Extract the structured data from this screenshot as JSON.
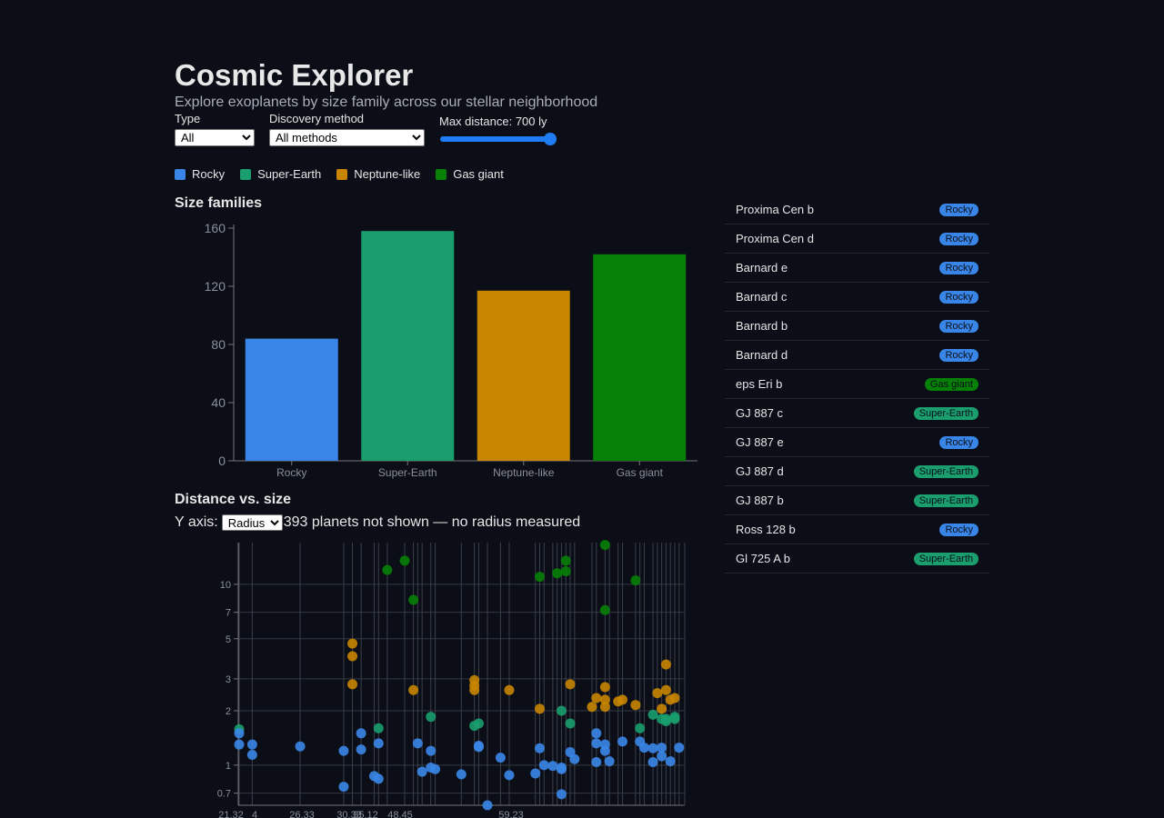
{
  "header": {
    "title": "Cosmic Explorer",
    "subtitle": "Explore exoplanets by size family across our stellar neighborhood"
  },
  "controls": {
    "type_label": "Type",
    "type_value": "All",
    "method_label": "Discovery method",
    "method_value": "All methods",
    "distance_label": "Max distance: 700 ly",
    "distance_fraction": 1.0
  },
  "legend": [
    {
      "label": "Rocky",
      "color": "#3a86e8"
    },
    {
      "label": "Super-Earth",
      "color": "#1a9e6e"
    },
    {
      "label": "Neptune-like",
      "color": "#c88500"
    },
    {
      "label": "Gas giant",
      "color": "#078007"
    }
  ],
  "bar_section": {
    "title": "Size families"
  },
  "scatter_section": {
    "title": "Distance vs. size",
    "yaxis_label": "Y axis:",
    "yaxis_value": "Radius",
    "note": "393 planets not shown — no radius measured"
  },
  "chart_data": [
    {
      "type": "bar",
      "title": "Size families",
      "categories": [
        "Rocky",
        "Super-Earth",
        "Neptune-like",
        "Gas giant"
      ],
      "values": [
        84,
        158,
        117,
        142
      ],
      "colors": [
        "#3a86e8",
        "#1a9e6e",
        "#c88500",
        "#078007"
      ],
      "ylim": [
        0,
        160
      ],
      "yticks": [
        0,
        40,
        80,
        120,
        160
      ],
      "grid": false
    },
    {
      "type": "scatter",
      "title": "Distance vs. size",
      "yscale": "log",
      "yticks": [
        0.7,
        1,
        2,
        3,
        5,
        7,
        10
      ],
      "ylim": [
        0.6,
        17
      ],
      "xlim": [
        0,
        100
      ],
      "grid": true,
      "points": [
        {
          "x": 0,
          "y": 1.58,
          "f": "Super-Earth"
        },
        {
          "x": 0,
          "y": 1.5,
          "f": "Rocky"
        },
        {
          "x": 0,
          "y": 1.3,
          "f": "Rocky"
        },
        {
          "x": 3,
          "y": 1.3,
          "f": "Rocky"
        },
        {
          "x": 3,
          "y": 1.14,
          "f": "Rocky"
        },
        {
          "x": 14,
          "y": 1.27,
          "f": "Rocky"
        },
        {
          "x": 24,
          "y": 1.2,
          "f": "Rocky"
        },
        {
          "x": 24,
          "y": 0.76,
          "f": "Rocky"
        },
        {
          "x": 26,
          "y": 4.7,
          "f": "Neptune-like"
        },
        {
          "x": 26,
          "y": 4.0,
          "f": "Neptune-like"
        },
        {
          "x": 26,
          "y": 2.8,
          "f": "Neptune-like"
        },
        {
          "x": 28,
          "y": 1.5,
          "f": "Rocky"
        },
        {
          "x": 28,
          "y": 1.22,
          "f": "Rocky"
        },
        {
          "x": 31,
          "y": 0.87,
          "f": "Rocky"
        },
        {
          "x": 32,
          "y": 1.6,
          "f": "Super-Earth"
        },
        {
          "x": 32,
          "y": 1.32,
          "f": "Rocky"
        },
        {
          "x": 32,
          "y": 0.84,
          "f": "Rocky"
        },
        {
          "x": 34,
          "y": 12.0,
          "f": "Gas giant"
        },
        {
          "x": 38,
          "y": 13.5,
          "f": "Gas giant"
        },
        {
          "x": 40,
          "y": 8.2,
          "f": "Gas giant"
        },
        {
          "x": 40,
          "y": 2.6,
          "f": "Neptune-like"
        },
        {
          "x": 41,
          "y": 1.32,
          "f": "Rocky"
        },
        {
          "x": 42,
          "y": 0.92,
          "f": "Rocky"
        },
        {
          "x": 44,
          "y": 1.85,
          "f": "Super-Earth"
        },
        {
          "x": 44,
          "y": 1.2,
          "f": "Rocky"
        },
        {
          "x": 44,
          "y": 0.97,
          "f": "Rocky"
        },
        {
          "x": 45,
          "y": 0.95,
          "f": "Rocky"
        },
        {
          "x": 51,
          "y": 0.89,
          "f": "Rocky"
        },
        {
          "x": 54,
          "y": 2.95,
          "f": "Neptune-like"
        },
        {
          "x": 54,
          "y": 2.75,
          "f": "Neptune-like"
        },
        {
          "x": 54,
          "y": 2.6,
          "f": "Neptune-like"
        },
        {
          "x": 54,
          "y": 1.65,
          "f": "Super-Earth"
        },
        {
          "x": 55,
          "y": 1.7,
          "f": "Super-Earth"
        },
        {
          "x": 55,
          "y": 1.28,
          "f": "Rocky"
        },
        {
          "x": 55,
          "y": 1.26,
          "f": "Rocky"
        },
        {
          "x": 57,
          "y": 0.6,
          "f": "Rocky"
        },
        {
          "x": 60,
          "y": 1.1,
          "f": "Rocky"
        },
        {
          "x": 62,
          "y": 2.6,
          "f": "Neptune-like"
        },
        {
          "x": 62,
          "y": 0.88,
          "f": "Rocky"
        },
        {
          "x": 69,
          "y": 11.0,
          "f": "Gas giant"
        },
        {
          "x": 69,
          "y": 2.05,
          "f": "Neptune-like"
        },
        {
          "x": 69,
          "y": 1.24,
          "f": "Rocky"
        },
        {
          "x": 68,
          "y": 0.9,
          "f": "Rocky"
        },
        {
          "x": 70,
          "y": 1.0,
          "f": "Rocky"
        },
        {
          "x": 72,
          "y": 0.99,
          "f": "Rocky"
        },
        {
          "x": 73,
          "y": 11.5,
          "f": "Gas giant"
        },
        {
          "x": 75,
          "y": 13.5,
          "f": "Gas giant"
        },
        {
          "x": 75,
          "y": 11.8,
          "f": "Gas giant"
        },
        {
          "x": 74,
          "y": 2.0,
          "f": "Super-Earth"
        },
        {
          "x": 74,
          "y": 0.97,
          "f": "Rocky"
        },
        {
          "x": 74,
          "y": 0.95,
          "f": "Rocky"
        },
        {
          "x": 74,
          "y": 0.69,
          "f": "Rocky"
        },
        {
          "x": 76,
          "y": 2.8,
          "f": "Neptune-like"
        },
        {
          "x": 76,
          "y": 1.7,
          "f": "Super-Earth"
        },
        {
          "x": 76,
          "y": 1.18,
          "f": "Rocky"
        },
        {
          "x": 77,
          "y": 1.08,
          "f": "Rocky"
        },
        {
          "x": 81,
          "y": 2.1,
          "f": "Neptune-like"
        },
        {
          "x": 82,
          "y": 2.35,
          "f": "Neptune-like"
        },
        {
          "x": 82,
          "y": 1.5,
          "f": "Rocky"
        },
        {
          "x": 82,
          "y": 1.32,
          "f": "Rocky"
        },
        {
          "x": 82,
          "y": 1.04,
          "f": "Rocky"
        },
        {
          "x": 84,
          "y": 16.5,
          "f": "Gas giant"
        },
        {
          "x": 84,
          "y": 7.2,
          "f": "Gas giant"
        },
        {
          "x": 84,
          "y": 2.7,
          "f": "Neptune-like"
        },
        {
          "x": 84,
          "y": 2.3,
          "f": "Neptune-like"
        },
        {
          "x": 84,
          "y": 2.1,
          "f": "Neptune-like"
        },
        {
          "x": 84,
          "y": 1.3,
          "f": "Rocky"
        },
        {
          "x": 84,
          "y": 1.2,
          "f": "Rocky"
        },
        {
          "x": 85,
          "y": 1.05,
          "f": "Rocky"
        },
        {
          "x": 87,
          "y": 2.25,
          "f": "Neptune-like"
        },
        {
          "x": 88,
          "y": 2.3,
          "f": "Neptune-like"
        },
        {
          "x": 88,
          "y": 1.35,
          "f": "Rocky"
        },
        {
          "x": 91,
          "y": 10.5,
          "f": "Gas giant"
        },
        {
          "x": 91,
          "y": 2.15,
          "f": "Neptune-like"
        },
        {
          "x": 92,
          "y": 1.6,
          "f": "Super-Earth"
        },
        {
          "x": 92,
          "y": 1.35,
          "f": "Rocky"
        },
        {
          "x": 93,
          "y": 1.25,
          "f": "Rocky"
        },
        {
          "x": 95,
          "y": 1.9,
          "f": "Super-Earth"
        },
        {
          "x": 95,
          "y": 1.24,
          "f": "Rocky"
        },
        {
          "x": 95,
          "y": 1.04,
          "f": "Rocky"
        },
        {
          "x": 96,
          "y": 2.5,
          "f": "Neptune-like"
        },
        {
          "x": 97,
          "y": 2.05,
          "f": "Neptune-like"
        },
        {
          "x": 97,
          "y": 1.8,
          "f": "Super-Earth"
        },
        {
          "x": 97,
          "y": 1.25,
          "f": "Rocky"
        },
        {
          "x": 97,
          "y": 1.12,
          "f": "Rocky"
        },
        {
          "x": 98,
          "y": 3.6,
          "f": "Neptune-like"
        },
        {
          "x": 98,
          "y": 2.6,
          "f": "Neptune-like"
        },
        {
          "x": 98,
          "y": 1.8,
          "f": "Super-Earth"
        },
        {
          "x": 98,
          "y": 1.75,
          "f": "Super-Earth"
        },
        {
          "x": 99,
          "y": 1.05,
          "f": "Rocky"
        },
        {
          "x": 99,
          "y": 2.3,
          "f": "Neptune-like"
        },
        {
          "x": 100,
          "y": 2.35,
          "f": "Neptune-like"
        },
        {
          "x": 100,
          "y": 1.85,
          "f": "Super-Earth"
        },
        {
          "x": 100,
          "y": 1.8,
          "f": "Super-Earth"
        },
        {
          "x": 101,
          "y": 1.25,
          "f": "Rocky"
        }
      ],
      "xtick_labels": [
        "21.32",
        "4",
        "26.33",
        "30.33",
        "35.12",
        "48.45",
        "59.23"
      ]
    }
  ],
  "planet_list": [
    {
      "name": "Proxima Cen b",
      "family": "Rocky"
    },
    {
      "name": "Proxima Cen d",
      "family": "Rocky"
    },
    {
      "name": "Barnard e",
      "family": "Rocky"
    },
    {
      "name": "Barnard c",
      "family": "Rocky"
    },
    {
      "name": "Barnard b",
      "family": "Rocky"
    },
    {
      "name": "Barnard d",
      "family": "Rocky"
    },
    {
      "name": "eps Eri b",
      "family": "Gas giant"
    },
    {
      "name": "GJ 887 c",
      "family": "Super-Earth"
    },
    {
      "name": "GJ 887 e",
      "family": "Rocky"
    },
    {
      "name": "GJ 887 d",
      "family": "Super-Earth"
    },
    {
      "name": "GJ 887 b",
      "family": "Super-Earth"
    },
    {
      "name": "Ross 128 b",
      "family": "Rocky"
    },
    {
      "name": "Gl 725 A b",
      "family": "Super-Earth"
    }
  ]
}
